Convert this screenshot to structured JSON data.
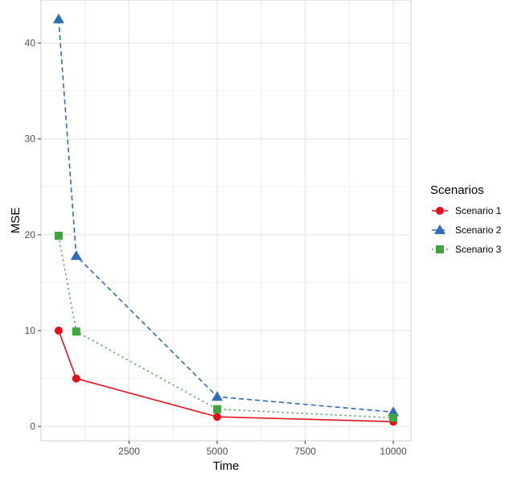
{
  "chart_data": {
    "type": "line",
    "xlabel": "Time",
    "ylabel": "MSE",
    "xlim": [
      0,
      10500
    ],
    "ylim": [
      -1.5,
      44.5
    ],
    "x_ticks": [
      2500,
      5000,
      7500,
      10000
    ],
    "y_ticks": [
      0,
      10,
      20,
      30,
      40
    ],
    "x_tick_labels": [
      "2500",
      "5000",
      "7500",
      "10000"
    ],
    "y_tick_labels": [
      "0",
      "10",
      "20",
      "30",
      "40"
    ],
    "grid": true,
    "legend": {
      "title": "Scenarios",
      "position": "right"
    },
    "x": [
      500,
      1000,
      5000,
      10000
    ],
    "series": [
      {
        "name": "Scenario 1",
        "values": [
          10,
          5,
          1,
          0.5
        ],
        "color": "#e3101e",
        "marker": "circle",
        "line": "solid"
      },
      {
        "name": "Scenario 2",
        "values": [
          42.5,
          17.8,
          3.1,
          1.5
        ],
        "color": "#2f6db5",
        "marker": "triangle",
        "line": "dashed"
      },
      {
        "name": "Scenario 3",
        "values": [
          19.9,
          9.9,
          1.8,
          0.9
        ],
        "color": "#3fa63f",
        "marker": "square",
        "line": "dotted"
      }
    ]
  }
}
